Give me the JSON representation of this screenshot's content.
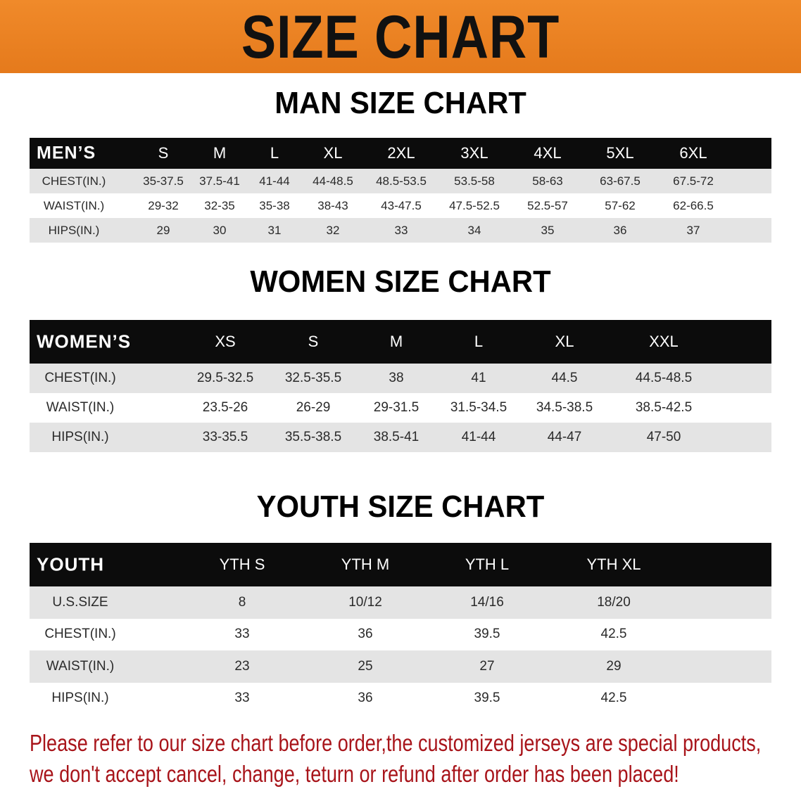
{
  "banner": {
    "title": "SIZE CHART",
    "color": "#e97d1f"
  },
  "men": {
    "title": "MAN SIZE CHART",
    "header_label": "MEN’S",
    "sizes": [
      "S",
      "M",
      "L",
      "XL",
      "2XL",
      "3XL",
      "4XL",
      "5XL",
      "6XL"
    ],
    "rows": [
      {
        "label": "CHEST(IN.)",
        "values": [
          "35-37.5",
          "37.5-41",
          "41-44",
          "44-48.5",
          "48.5-53.5",
          "53.5-58",
          "58-63",
          "63-67.5",
          "67.5-72"
        ]
      },
      {
        "label": "WAIST(IN.)",
        "values": [
          "29-32",
          "32-35",
          "35-38",
          "38-43",
          "43-47.5",
          "47.5-52.5",
          "52.5-57",
          "57-62",
          "62-66.5"
        ]
      },
      {
        "label": "HIPS(IN.)",
        "values": [
          "29",
          "30",
          "31",
          "32",
          "33",
          "34",
          "35",
          "36",
          "37"
        ]
      }
    ]
  },
  "women": {
    "title": "WOMEN SIZE CHART",
    "header_label": "WOMEN’S",
    "sizes": [
      "XS",
      "S",
      "M",
      "L",
      "XL",
      "XXL"
    ],
    "rows": [
      {
        "label": "CHEST(IN.)",
        "values": [
          "29.5-32.5",
          "32.5-35.5",
          "38",
          "41",
          "44.5",
          "44.5-48.5"
        ]
      },
      {
        "label": "WAIST(IN.)",
        "values": [
          "23.5-26",
          "26-29",
          "29-31.5",
          "31.5-34.5",
          "34.5-38.5",
          "38.5-42.5"
        ]
      },
      {
        "label": "HIPS(IN.)",
        "values": [
          "33-35.5",
          "35.5-38.5",
          "38.5-41",
          "41-44",
          "44-47",
          "47-50"
        ]
      }
    ]
  },
  "youth": {
    "title": "YOUTH SIZE CHART",
    "header_label": "YOUTH",
    "sizes": [
      "YTH S",
      "YTH M",
      "YTH L",
      "YTH XL"
    ],
    "rows": [
      {
        "label": "U.S.SIZE",
        "values": [
          "8",
          "10/12",
          "14/16",
          "18/20"
        ]
      },
      {
        "label": "CHEST(IN.)",
        "values": [
          "33",
          "36",
          "39.5",
          "42.5"
        ]
      },
      {
        "label": "WAIST(IN.)",
        "values": [
          "23",
          "25",
          "27",
          "29"
        ]
      },
      {
        "label": "HIPS(IN.)",
        "values": [
          "33",
          "36",
          "39.5",
          "42.5"
        ]
      }
    ]
  },
  "notice": {
    "line1": "Please refer to our size chart before order,the customized jerseys are special products,",
    "line2": "we don't accept cancel, change, teturn or refund after order has been placed!",
    "color": "#a8141a"
  }
}
